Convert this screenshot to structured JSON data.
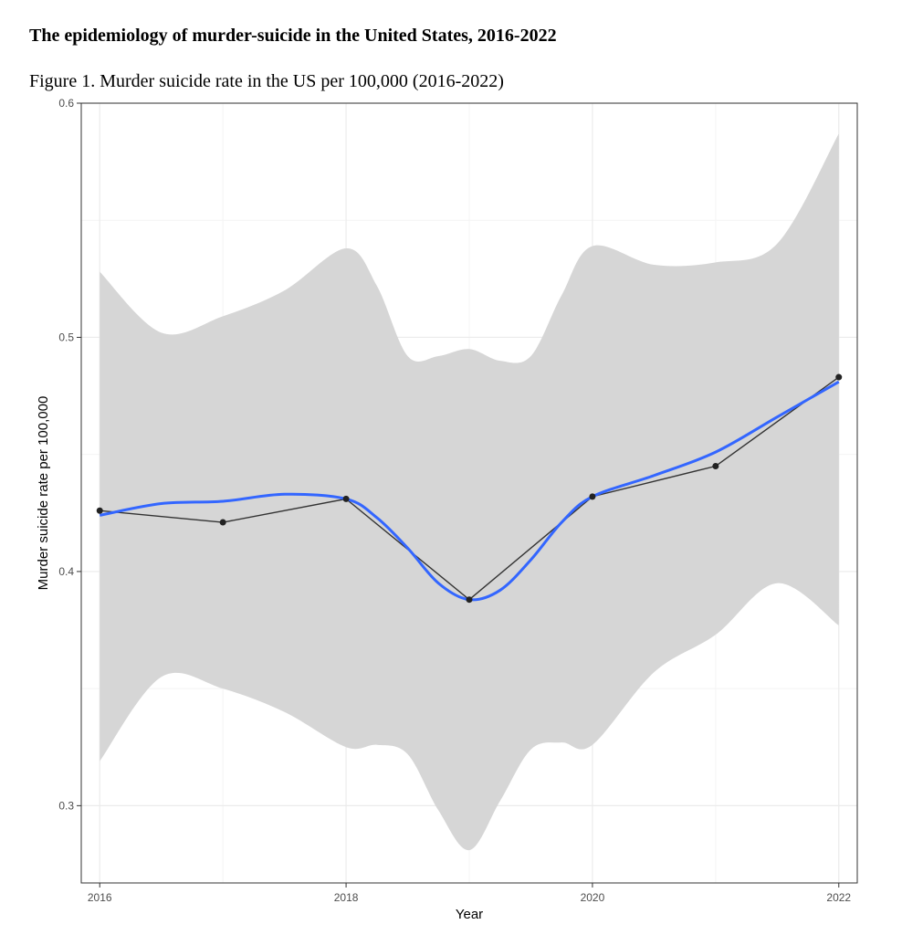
{
  "document": {
    "title": "The epidemiology of murder-suicide in the United States, 2016-2022",
    "figure_caption": "Figure 1. Murder suicide rate in the US per 100,000 (2016-2022)"
  },
  "chart_data": {
    "type": "line",
    "xlabel": "Year",
    "ylabel": "Murder suicide rate per 100,000",
    "xlim": [
      2015.85,
      2022.15
    ],
    "ylim": [
      0.267,
      0.6
    ],
    "x_ticks": [
      2016,
      2018,
      2020,
      2022
    ],
    "y_ticks": [
      0.3,
      0.4,
      0.5,
      0.6
    ],
    "y_tick_labels": [
      "0.3",
      "0.4",
      "0.5",
      "0.6"
    ],
    "grid": true,
    "series": [
      {
        "kind": "observed",
        "x": [
          2016,
          2017,
          2018,
          2019,
          2020,
          2021,
          2022
        ],
        "y": [
          0.426,
          0.421,
          0.431,
          0.388,
          0.432,
          0.445,
          0.483
        ]
      },
      {
        "kind": "smooth",
        "x": [
          2016,
          2016.5,
          2017,
          2017.5,
          2018,
          2018.25,
          2018.5,
          2018.75,
          2019,
          2019.25,
          2019.5,
          2019.75,
          2020,
          2020.5,
          2021,
          2021.5,
          2022
        ],
        "y": [
          0.424,
          0.429,
          0.43,
          0.433,
          0.431,
          0.423,
          0.41,
          0.395,
          0.388,
          0.392,
          0.405,
          0.421,
          0.432,
          0.441,
          0.451,
          0.466,
          0.481
        ]
      },
      {
        "kind": "confidence-band",
        "x": [
          2016,
          2016.5,
          2017,
          2017.5,
          2018,
          2018.25,
          2018.5,
          2018.75,
          2019,
          2019.25,
          2019.5,
          2019.75,
          2020,
          2020.5,
          2021,
          2021.5,
          2022
        ],
        "upper": [
          0.528,
          0.502,
          0.509,
          0.52,
          0.538,
          0.522,
          0.492,
          0.492,
          0.495,
          0.49,
          0.492,
          0.518,
          0.539,
          0.531,
          0.532,
          0.54,
          0.587
        ],
        "lower": [
          0.319,
          0.355,
          0.35,
          0.34,
          0.325,
          0.326,
          0.322,
          0.298,
          0.281,
          0.302,
          0.324,
          0.327,
          0.326,
          0.357,
          0.373,
          0.395,
          0.377
        ]
      }
    ],
    "colors": {
      "observed_line": "#333333",
      "observed_points": "#222222",
      "smooth_line": "#3366ff",
      "confidence_band": "#d6d6d6",
      "grid": "#ebebeb",
      "panel_border": "#333333"
    }
  }
}
